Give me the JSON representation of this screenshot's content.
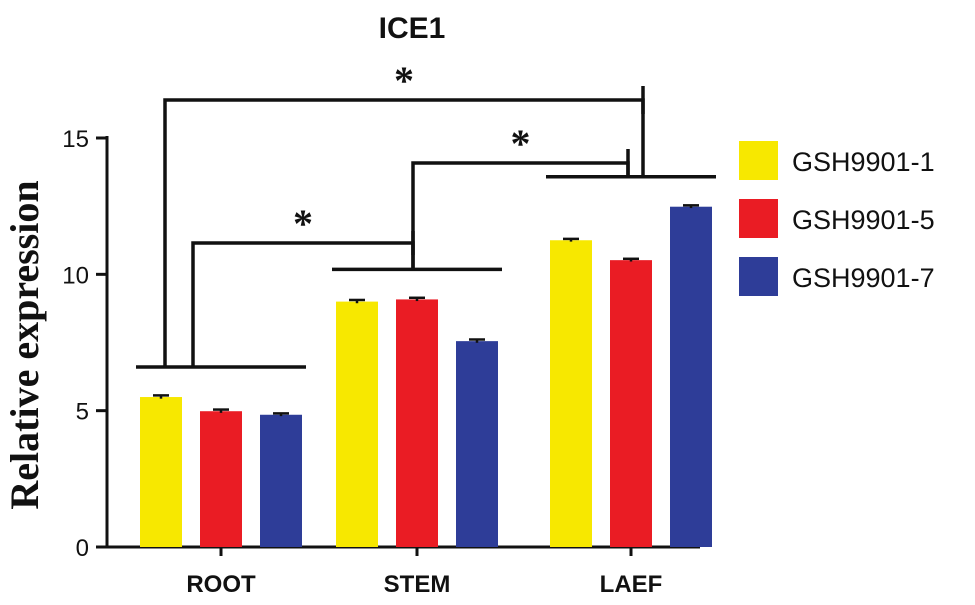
{
  "chart_data": {
    "type": "bar",
    "title": "ICE1",
    "xlabel": "",
    "ylabel": "Relative expression",
    "ylim": [
      0,
      15
    ],
    "yticks": [
      0,
      5,
      10,
      15
    ],
    "categories": [
      "ROOT",
      "STEM",
      "LAEF"
    ],
    "series": [
      {
        "name": "GSH9901-1",
        "color": "#f7e800",
        "values": [
          5.5,
          9.0,
          11.25
        ],
        "errors": [
          0.06,
          0.06,
          0.05
        ]
      },
      {
        "name": "GSH9901-5",
        "color": "#ea1c24",
        "values": [
          4.98,
          9.08,
          10.52
        ],
        "errors": [
          0.06,
          0.06,
          0.05
        ]
      },
      {
        "name": "GSH9901-7",
        "color": "#2e3d98",
        "values": [
          4.85,
          7.55,
          12.48
        ],
        "errors": [
          0.05,
          0.06,
          0.05
        ]
      }
    ],
    "significance": [
      {
        "from": "ROOT",
        "to": "STEM",
        "label": "*"
      },
      {
        "from": "STEM",
        "to": "LAEF",
        "label": "*"
      },
      {
        "from": "ROOT",
        "to": "LAEF",
        "label": "*"
      }
    ],
    "legend_position": "right"
  }
}
